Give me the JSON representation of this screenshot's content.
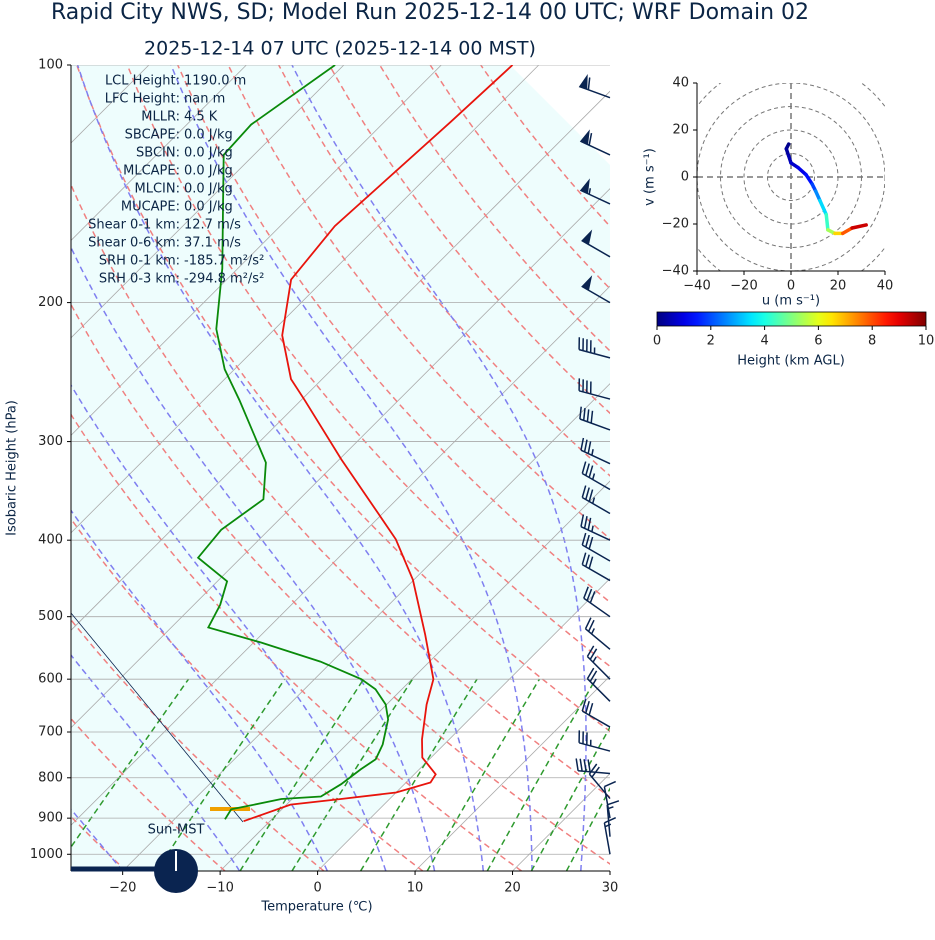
{
  "chart_data": [
    {
      "type": "skewt",
      "title": "Rapid City NWS, SD; Model Run 2025-12-14 00 UTC; WRF Domain 02",
      "subtitle": "2025-12-14 07 UTC  (2025-12-14 00 MST)",
      "xlabel": "Temperature (℃)",
      "ylabel": "Isobaric Height (hPa)",
      "xlim": [
        -25.3,
        30
      ],
      "ylim": [
        1050,
        100
      ],
      "xticks": [
        {
          "value": -20,
          "label": "−20"
        },
        {
          "value": -10,
          "label": "−10"
        },
        0,
        10,
        20,
        30
      ],
      "yticks": [
        100,
        200,
        300,
        400,
        500,
        600,
        700,
        800,
        900,
        1000
      ],
      "grid": true,
      "series": [
        {
          "color": "#e8140c",
          "pressure": [
            908,
            865,
            851,
            835,
            811,
            792,
            754,
            715,
            646,
            600,
            527,
            449,
            399,
            371,
            316,
            266,
            250,
            220,
            187,
            160,
            118,
            100
          ],
          "values": [
            -12.7,
            -9.6,
            -5.0,
            0.0,
            2.5,
            2.2,
            -0.9,
            -2.8,
            -5.9,
            -7.8,
            -13.2,
            -20.1,
            -26.0,
            -30.3,
            -39.8,
            -49.6,
            -53.2,
            -58.6,
            -63.4,
            -64.4,
            -63.2,
            -62.7
          ]
        },
        {
          "color": "#0a8a0a",
          "pressure": [
            903,
            877,
            867,
            851,
            845,
            815,
            780,
            758,
            726,
            675,
            646,
            618,
            600,
            570,
            539,
            516,
            483,
            451,
            421,
            388,
            355,
            319,
            266,
            243,
            216,
            181,
            148,
            130,
            119,
            100
          ],
          "values": [
            -14.8,
            -15.2,
            -13.6,
            -11.1,
            -7.3,
            -6.5,
            -6.0,
            -5.5,
            -6.3,
            -8.3,
            -10.1,
            -12.7,
            -15.2,
            -21.2,
            -29.3,
            -36.2,
            -37.3,
            -39.0,
            -44.4,
            -44.9,
            -43.7,
            -47.2,
            -56.3,
            -61.0,
            -66.0,
            -71.6,
            -78.6,
            -83.1,
            -83.4,
            -80.9
          ]
        }
      ],
      "wind": {
        "color": "#0a2450",
        "pressure": [
          110,
          130,
          150,
          175,
          200,
          235,
          265,
          290,
          320,
          345,
          370,
          400,
          425,
          450,
          500,
          550,
          600,
          640,
          690,
          740,
          790,
          850,
          900,
          950,
          1000
        ],
        "speed": [
          60,
          60,
          55,
          50,
          50,
          45,
          40,
          40,
          35,
          35,
          35,
          35,
          30,
          30,
          30,
          25,
          25,
          25,
          30,
          35,
          40,
          20,
          10,
          15,
          15
        ],
        "direction": [
          290,
          295,
          295,
          300,
          300,
          285,
          285,
          290,
          295,
          300,
          300,
          295,
          300,
          300,
          305,
          310,
          315,
          315,
          300,
          285,
          275,
          320,
          350,
          355,
          350
        ]
      }
    },
    {
      "type": "hodograph",
      "xlabel": "u (m s⁻¹)",
      "ylabel": "v (m s⁻¹)",
      "xlim": [
        -40,
        40
      ],
      "ylim": [
        -40,
        40
      ],
      "xticks": [
        {
          "value": -40,
          "label": "−40"
        },
        {
          "value": -20,
          "label": "−20"
        },
        0,
        20,
        40
      ],
      "yticks": [
        {
          "value": -40,
          "label": "−40"
        },
        {
          "value": -20,
          "label": "−20"
        },
        0,
        20,
        40
      ],
      "u": [
        -1,
        -2,
        -1,
        0,
        3,
        6.4,
        9,
        10.5,
        12.3,
        15,
        15.7,
        18.7,
        22,
        26,
        32
      ],
      "v": [
        14,
        12,
        9,
        6,
        4,
        1,
        -3,
        -6,
        -10,
        -16,
        -22.5,
        -24,
        -24,
        -21.7,
        -20.4
      ],
      "height": [
        0,
        0.2,
        0.4,
        0.6,
        0.9,
        1.2,
        1.6,
        2.2,
        3,
        3.8,
        4.8,
        6,
        7.3,
        8.5,
        10
      ],
      "colorbar": {
        "label": "Height (km AGL)",
        "lim": [
          0,
          10
        ],
        "ticks": [
          0,
          2,
          4,
          6,
          8,
          10
        ]
      }
    }
  ],
  "stats": [
    {
      "label": "LCL Height:",
      "value": "1190.0 m"
    },
    {
      "label": "LFC Height:",
      "value": "nan m"
    },
    {
      "label": "MLLR:",
      "value": "4.5 K"
    },
    {
      "label": "SBCAPE:",
      "value": "0.0 J/kg"
    },
    {
      "label": "SBCIN:",
      "value": "0.0 J/kg"
    },
    {
      "label": "MLCAPE:",
      "value": "0.0 J/kg"
    },
    {
      "label": "MLCIN:",
      "value": "0.0 J/kg"
    },
    {
      "label": "MUCAPE:",
      "value": "0.0 J/kg"
    },
    {
      "label": "Shear 0-1 km:",
      "value": "12.7 m/s"
    },
    {
      "label": "Shear 0-6 km:",
      "value": "37.1 m/s"
    },
    {
      "label": "SRH 0-1 km:",
      "value": "-185.7 m²/s²"
    },
    {
      "label": "SRH 0-3 km:",
      "value": "-294.8 m²/s²"
    }
  ],
  "time_marker": {
    "label": "Sun-MST"
  }
}
